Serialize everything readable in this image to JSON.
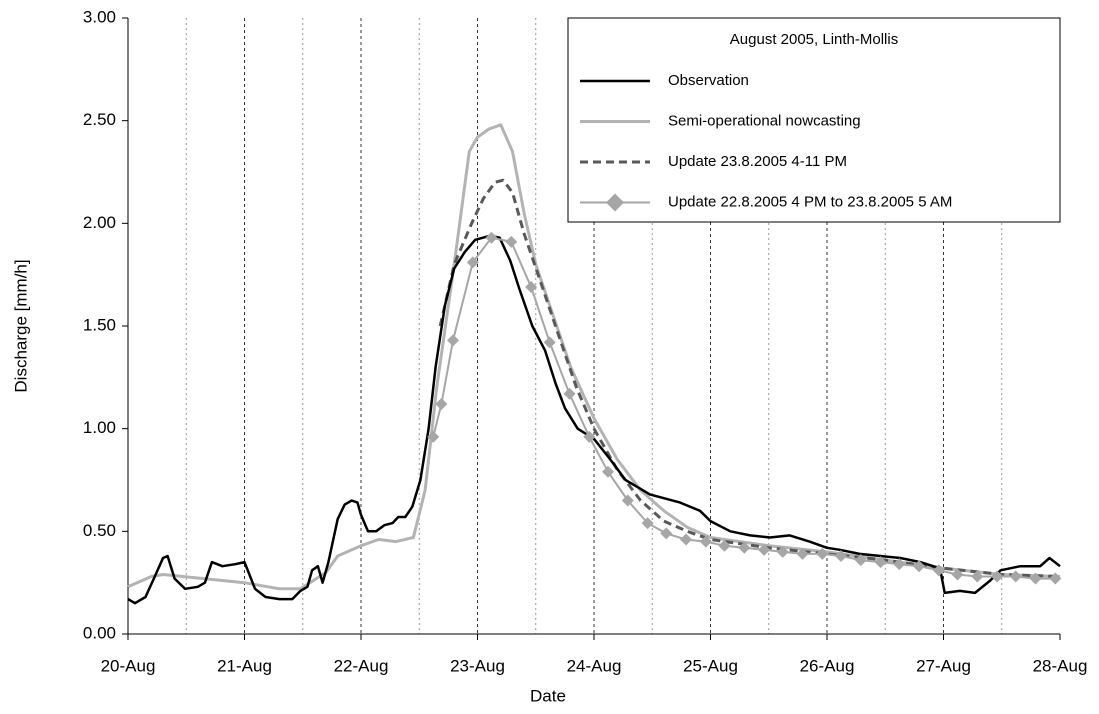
{
  "chart_data": {
    "type": "line",
    "x_label": "Date",
    "y_label": "Discharge [mm/h]",
    "legend_title": "August 2005, Linth-Mollis",
    "legend_position": "upper right",
    "grid": true,
    "xlim": [
      20,
      28
    ],
    "xticks": [
      {
        "value": 20,
        "label": "20-Aug"
      },
      {
        "value": 21,
        "label": "21-Aug"
      },
      {
        "value": 22,
        "label": "22-Aug"
      },
      {
        "value": 23,
        "label": "23-Aug"
      },
      {
        "value": 24,
        "label": "24-Aug"
      },
      {
        "value": 25,
        "label": "25-Aug"
      },
      {
        "value": 26,
        "label": "26-Aug"
      },
      {
        "value": 27,
        "label": "27-Aug"
      },
      {
        "value": 28,
        "label": "28-Aug"
      }
    ],
    "ylim": [
      0,
      3
    ],
    "yticks": [
      {
        "value": 0,
        "label": "0.00"
      },
      {
        "value": 0.5,
        "label": "0.50"
      },
      {
        "value": 1,
        "label": "1.00"
      },
      {
        "value": 1.5,
        "label": "1.50"
      },
      {
        "value": 2,
        "label": "2.00"
      },
      {
        "value": 2.5,
        "label": "2.50"
      },
      {
        "value": 3,
        "label": "3.00"
      }
    ],
    "series": [
      {
        "name": "Observation",
        "color": "#000000",
        "line_style": "solid",
        "line_width": 2.5,
        "x": [
          20.0,
          20.06,
          20.15,
          20.23,
          20.3,
          20.34,
          20.4,
          20.49,
          20.6,
          20.66,
          20.72,
          20.81,
          20.92,
          21.0,
          21.09,
          21.18,
          21.3,
          21.41,
          21.48,
          21.54,
          21.58,
          21.63,
          21.67,
          21.72,
          21.8,
          21.86,
          21.92,
          21.97,
          22.0,
          22.06,
          22.13,
          22.2,
          22.27,
          22.32,
          22.38,
          22.44,
          22.51,
          22.58,
          22.64,
          22.72,
          22.8,
          22.89,
          22.98,
          23.11,
          23.19,
          23.28,
          23.36,
          23.47,
          23.58,
          23.67,
          23.75,
          23.86,
          24.0,
          24.14,
          24.27,
          24.48,
          24.74,
          24.91,
          25.0,
          25.17,
          25.34,
          25.51,
          25.68,
          25.85,
          26.0,
          26.11,
          26.28,
          26.46,
          26.63,
          26.8,
          26.97,
          27.01,
          27.14,
          27.27,
          27.4,
          27.49,
          27.66,
          27.83,
          27.91,
          28.0
        ],
        "values": [
          0.17,
          0.15,
          0.18,
          0.28,
          0.37,
          0.38,
          0.27,
          0.22,
          0.23,
          0.25,
          0.35,
          0.33,
          0.34,
          0.35,
          0.22,
          0.18,
          0.17,
          0.17,
          0.21,
          0.23,
          0.31,
          0.33,
          0.25,
          0.35,
          0.56,
          0.63,
          0.65,
          0.64,
          0.58,
          0.5,
          0.5,
          0.53,
          0.54,
          0.57,
          0.57,
          0.62,
          0.75,
          1.0,
          1.3,
          1.6,
          1.78,
          1.86,
          1.92,
          1.94,
          1.93,
          1.82,
          1.68,
          1.5,
          1.38,
          1.22,
          1.1,
          1.0,
          0.95,
          0.85,
          0.75,
          0.68,
          0.64,
          0.6,
          0.55,
          0.5,
          0.48,
          0.47,
          0.48,
          0.45,
          0.42,
          0.41,
          0.39,
          0.38,
          0.37,
          0.35,
          0.32,
          0.2,
          0.21,
          0.2,
          0.26,
          0.31,
          0.33,
          0.33,
          0.37,
          0.33
        ]
      },
      {
        "name": "Semi-operational nowcasting",
        "color": "#b3b3b3",
        "line_style": "solid",
        "line_width": 3,
        "x": [
          20.0,
          20.2,
          20.3,
          21.0,
          21.3,
          21.48,
          21.7,
          21.8,
          22.0,
          22.15,
          22.3,
          22.45,
          22.55,
          22.65,
          22.8,
          22.93,
          23.0,
          23.1,
          23.2,
          23.3,
          23.4,
          23.5,
          23.65,
          23.8,
          24.0,
          24.2,
          24.4,
          24.6,
          24.8,
          25.0,
          25.5,
          26.0,
          26.5,
          27.0,
          27.5,
          28.0
        ],
        "values": [
          0.23,
          0.28,
          0.29,
          0.25,
          0.22,
          0.22,
          0.3,
          0.38,
          0.43,
          0.46,
          0.45,
          0.47,
          0.7,
          1.2,
          1.8,
          2.35,
          2.42,
          2.46,
          2.48,
          2.35,
          2.05,
          1.8,
          1.55,
          1.3,
          1.05,
          0.85,
          0.7,
          0.6,
          0.52,
          0.47,
          0.43,
          0.4,
          0.36,
          0.32,
          0.29,
          0.28
        ]
      },
      {
        "name": "Update 23.8.2005 4-11 PM",
        "color": "#595959",
        "line_style": "dashed",
        "line_width": 3,
        "x": [
          22.68,
          22.8,
          22.95,
          23.05,
          23.15,
          23.22,
          23.3,
          23.4,
          23.55,
          23.7,
          23.85,
          24.0,
          24.2,
          24.4,
          24.6,
          24.8,
          25.0,
          25.5,
          26.0,
          26.5,
          27.0,
          27.5,
          28.0
        ],
        "values": [
          1.5,
          1.8,
          2.0,
          2.12,
          2.2,
          2.21,
          2.15,
          1.95,
          1.7,
          1.45,
          1.2,
          1.0,
          0.8,
          0.65,
          0.55,
          0.5,
          0.46,
          0.42,
          0.39,
          0.36,
          0.32,
          0.29,
          0.28
        ]
      },
      {
        "name": "Update 22.8.2005 4 PM to 23.8.2005 5 AM",
        "color": "#a6a6a6",
        "line_style": "solid",
        "line_width": 2,
        "marker": "diamond",
        "x": [
          22.62,
          22.69,
          22.79,
          22.96,
          23.12,
          23.29,
          23.46,
          23.62,
          23.79,
          23.96,
          24.12,
          24.29,
          24.46,
          24.62,
          24.79,
          24.96,
          25.12,
          25.29,
          25.46,
          25.62,
          25.79,
          25.96,
          26.12,
          26.29,
          26.46,
          26.62,
          26.79,
          26.96,
          27.12,
          27.29,
          27.46,
          27.62,
          27.79,
          27.96
        ],
        "values": [
          0.96,
          1.12,
          1.43,
          1.81,
          1.93,
          1.91,
          1.69,
          1.42,
          1.17,
          0.96,
          0.79,
          0.65,
          0.54,
          0.49,
          0.46,
          0.45,
          0.43,
          0.42,
          0.41,
          0.4,
          0.39,
          0.39,
          0.38,
          0.36,
          0.35,
          0.34,
          0.33,
          0.31,
          0.29,
          0.28,
          0.28,
          0.28,
          0.27,
          0.27
        ]
      }
    ]
  }
}
